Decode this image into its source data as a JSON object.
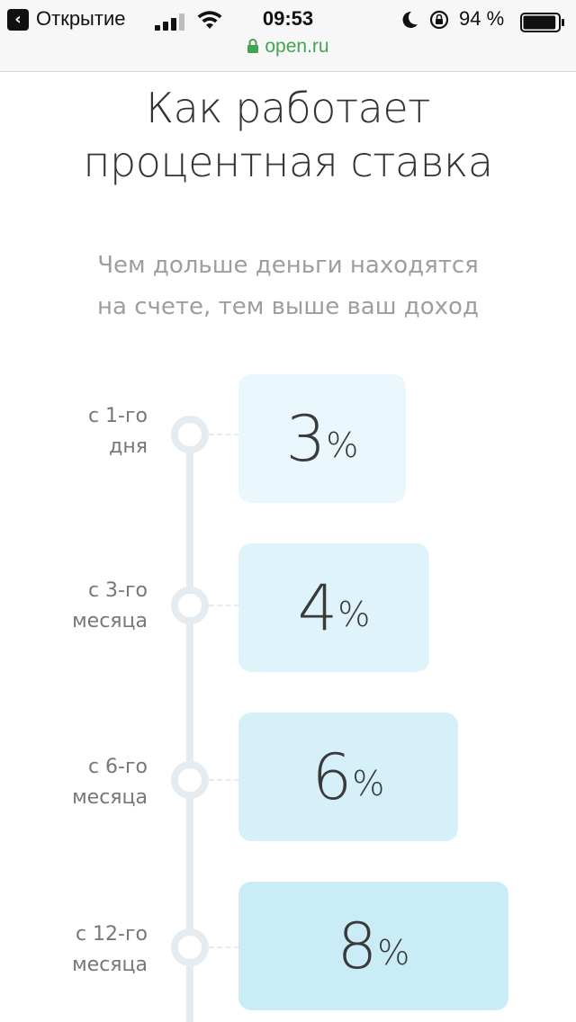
{
  "status_bar": {
    "back_app": "Открытие",
    "time": "09:53",
    "battery": "94 %",
    "battery_level": 0.94,
    "url": "open.ru"
  },
  "page": {
    "title_line1": "Как работает",
    "title_line2": "процентная ставка",
    "subtitle_line1": "Чем дольше деньги находятся",
    "subtitle_line2": "на счете, тем выше ваш доход"
  },
  "steps": [
    {
      "label_line1": "с 1-го",
      "label_line2": "дня",
      "rate": "3",
      "unit": "%",
      "color": "#eaf7fc"
    },
    {
      "label_line1": "с 3-го",
      "label_line2": "месяца",
      "rate": "4",
      "unit": "%",
      "color": "#dff3fa"
    },
    {
      "label_line1": "с 6-го",
      "label_line2": "месяца",
      "rate": "6",
      "unit": "%",
      "color": "#d5f0f8"
    },
    {
      "label_line1": "с 12-го",
      "label_line2": "месяца",
      "rate": "8",
      "unit": "%",
      "color": "#c9ecf7"
    }
  ]
}
